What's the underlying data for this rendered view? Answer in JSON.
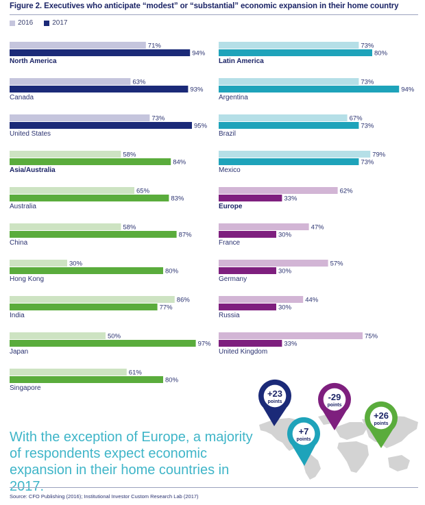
{
  "title": "Figure 2. Executives who anticipate “modest” or “substantial” economic expansion in their home country",
  "legend": [
    {
      "label": "2016",
      "color": "#c5c5dd"
    },
    {
      "label": "2017",
      "color": "#1b2a78"
    }
  ],
  "headline": "With the exception of Europe, a majority of respondents expect economic expansion in their home countries in 2017.",
  "source": "Source: CFO Publishing (2016); Institutional Investor Custom Research Lab (2017)",
  "pins": [
    {
      "value": "+23",
      "unit": "points",
      "region": "North America",
      "color": "#1b2a78"
    },
    {
      "value": "+7",
      "unit": "points",
      "region": "Latin America",
      "color": "#1ea3ba"
    },
    {
      "value": "-29",
      "unit": "points",
      "region": "Europe",
      "color": "#7e1f7e"
    },
    {
      "value": "+26",
      "unit": "points",
      "region": "Asia/Australia",
      "color": "#5aac3c"
    }
  ],
  "chart_data": {
    "type": "bar",
    "orientation": "horizontal",
    "title": "Figure 2. Executives who anticipate “modest” or “substantial” economic expansion in their home country",
    "series_names": [
      "2016",
      "2017"
    ],
    "unit": "%",
    "xlim": [
      0,
      100
    ],
    "groups": [
      {
        "region": "North America",
        "column": "left",
        "colors": {
          "2016": "#c5c5dd",
          "2017": "#1b2a78"
        },
        "items": [
          {
            "label": "North America",
            "bold": true,
            "v2016": 71,
            "v2017": 94
          },
          {
            "label": "Canada",
            "bold": false,
            "v2016": 63,
            "v2017": 93
          },
          {
            "label": "United States",
            "bold": false,
            "v2016": 73,
            "v2017": 95
          }
        ]
      },
      {
        "region": "Asia/Australia",
        "column": "left",
        "colors": {
          "2016": "#cde3c2",
          "2017": "#5aac3c"
        },
        "items": [
          {
            "label": "Asia/Australia",
            "bold": true,
            "v2016": 58,
            "v2017": 84
          },
          {
            "label": "Australia",
            "bold": false,
            "v2016": 65,
            "v2017": 83
          },
          {
            "label": "China",
            "bold": false,
            "v2016": 58,
            "v2017": 87
          },
          {
            "label": "Hong Kong",
            "bold": false,
            "v2016": 30,
            "v2017": 80
          },
          {
            "label": "India",
            "bold": false,
            "v2016": 86,
            "v2017": 77
          },
          {
            "label": "Japan",
            "bold": false,
            "v2016": 50,
            "v2017": 97
          },
          {
            "label": "Singapore",
            "bold": false,
            "v2016": 61,
            "v2017": 80
          }
        ]
      },
      {
        "region": "Latin America",
        "column": "right",
        "colors": {
          "2016": "#b5dfe7",
          "2017": "#1ea3ba"
        },
        "items": [
          {
            "label": "Latin America",
            "bold": true,
            "v2016": 73,
            "v2017": 80
          },
          {
            "label": "Argentina",
            "bold": false,
            "v2016": 73,
            "v2017": 94
          },
          {
            "label": "Brazil",
            "bold": false,
            "v2016": 67,
            "v2017": 73
          },
          {
            "label": "Mexico",
            "bold": false,
            "v2016": 79,
            "v2017": 73
          }
        ]
      },
      {
        "region": "Europe",
        "column": "right",
        "colors": {
          "2016": "#d2b5d5",
          "2017": "#7e1f7e"
        },
        "items": [
          {
            "label": "Europe",
            "bold": true,
            "v2016": 62,
            "v2017": 33
          },
          {
            "label": "France",
            "bold": false,
            "v2016": 47,
            "v2017": 30
          },
          {
            "label": "Germany",
            "bold": false,
            "v2016": 57,
            "v2017": 30
          },
          {
            "label": "Russia",
            "bold": false,
            "v2016": 44,
            "v2017": 30
          },
          {
            "label": "United Kingdom",
            "bold": false,
            "v2016": 75,
            "v2017": 33
          }
        ]
      }
    ]
  }
}
